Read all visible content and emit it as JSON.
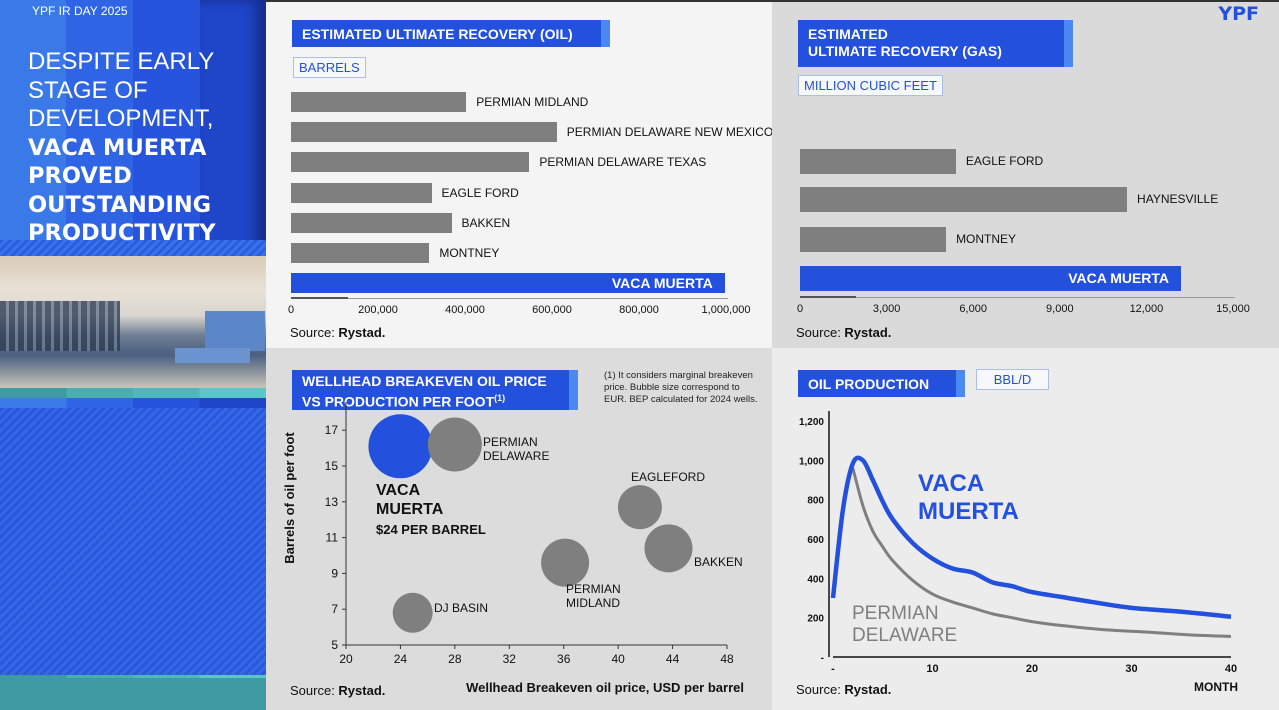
{
  "event_label": "YPF IR DAY 2025",
  "logo": "YPF",
  "headline": {
    "normal": [
      "DESPITE EARLY",
      "STAGE OF",
      "DEVELOPMENT,"
    ],
    "bold": [
      "VACA MUERTA",
      "PROVED",
      "OUTSTANDING",
      "PRODUCTIVITY"
    ]
  },
  "colors": {
    "accent": "#2350dc",
    "accent_light": "#4a8af0",
    "gray_bar": "#7f7f7f",
    "teal": "#4fb8bd"
  },
  "chart_data": [
    {
      "type": "bar",
      "orientation": "horizontal",
      "title": "ESTIMATED ULTIMATE RECOVERY (OIL)",
      "unit": "BARRELS",
      "categories": [
        "PERMIAN MIDLAND",
        "PERMIAN DELAWARE NEW MEXICO",
        "PERMIAN DELAWARE TEXAS",
        "EAGLE FORD",
        "BAKKEN",
        "MONTNEY",
        "VACA MUERTA"
      ],
      "values": [
        403000,
        611000,
        548000,
        323000,
        369000,
        318000,
        997000
      ],
      "highlight": "VACA MUERTA",
      "xlim": [
        0,
        1000000
      ],
      "ticks": [
        "0",
        "200,000",
        "400,000",
        "600,000",
        "800,000",
        "1,000,000"
      ],
      "source_prefix": "Source: ",
      "source": "Rystad."
    },
    {
      "type": "bar",
      "orientation": "horizontal",
      "title_lines": [
        "ESTIMATED",
        "ULTIMATE RECOVERY (GAS)"
      ],
      "unit": "MILLION CUBIC FEET",
      "categories": [
        "EAGLE FORD",
        "HAYNESVILLE",
        "MONTNEY",
        "VACA MUERTA"
      ],
      "values": [
        5400,
        11330,
        5060,
        13200
      ],
      "highlight": "VACA MUERTA",
      "xlim": [
        0,
        15000
      ],
      "ticks": [
        "0",
        "3,000",
        "6,000",
        "9,000",
        "12,000",
        "15,000"
      ],
      "source_prefix": "Source: ",
      "source": "Rystad."
    },
    {
      "type": "scatter",
      "subtype": "bubble",
      "title_lines": [
        "WELLHEAD BREAKEVEN OIL PRICE",
        "VS PRODUCTION PER FOOT"
      ],
      "title_sup": "(1)",
      "footnote": "(1) It considers marginal breakeven price. Bubble size correspond to EUR. BEP calculated for 2024 wells.",
      "xlabel": "Wellhead Breakeven oil price, USD per barrel",
      "ylabel": "Barrels of oil per foot",
      "xlim": [
        20,
        48
      ],
      "ylim": [
        5,
        17.9
      ],
      "xticks": [
        "20",
        "24",
        "28",
        "32",
        "36",
        "40",
        "44",
        "48"
      ],
      "yticks": [
        "5",
        "7",
        "9",
        "11",
        "13",
        "15",
        "17"
      ],
      "points": [
        {
          "name": "VACA MUERTA",
          "x": 24,
          "y": 16.1,
          "size": 32,
          "highlight": true,
          "annotation": "$24 PER BARREL"
        },
        {
          "name": "PERMIAN DELAWARE",
          "x": 28,
          "y": 16.2,
          "size": 27
        },
        {
          "name": "EAGLEFORD",
          "x": 41.6,
          "y": 12.7,
          "size": 22
        },
        {
          "name": "BAKKEN",
          "x": 43.7,
          "y": 10.4,
          "size": 24
        },
        {
          "name": "PERMIAN MIDLAND",
          "x": 36.1,
          "y": 9.6,
          "size": 24
        },
        {
          "name": "DJ BASIN",
          "x": 24.9,
          "y": 6.8,
          "size": 20
        }
      ],
      "source_prefix": "Source: ",
      "source": "Rystad."
    },
    {
      "type": "line",
      "title": "OIL PRODUCTION",
      "unit": "BBL/D",
      "xlabel": "MONTH",
      "xlim": [
        0,
        40
      ],
      "ylim": [
        0,
        1200
      ],
      "xticks": [
        "-",
        "10",
        "20",
        "30",
        "40"
      ],
      "yticks": [
        "-",
        "200",
        "400",
        "600",
        "800",
        "1,000",
        "1,200"
      ],
      "series": [
        {
          "name": "VACA MUERTA",
          "x": [
            0,
            1,
            2,
            3,
            4,
            5,
            6,
            8,
            10,
            12,
            14,
            16,
            18,
            20,
            23,
            26,
            30,
            35,
            40
          ],
          "y": [
            300,
            750,
            985,
            1000,
            900,
            790,
            700,
            580,
            500,
            450,
            430,
            380,
            360,
            330,
            305,
            280,
            250,
            230,
            205
          ]
        },
        {
          "name": "PERMIAN DELAWARE",
          "x": [
            2,
            3,
            4,
            5,
            6,
            8,
            10,
            12,
            14,
            16,
            18,
            20,
            23,
            27,
            32,
            36,
            40
          ],
          "y": [
            960,
            770,
            640,
            560,
            490,
            390,
            320,
            280,
            250,
            220,
            200,
            180,
            160,
            140,
            125,
            112,
            105
          ]
        }
      ],
      "source_prefix": "Source: ",
      "source": "Rystad."
    }
  ]
}
